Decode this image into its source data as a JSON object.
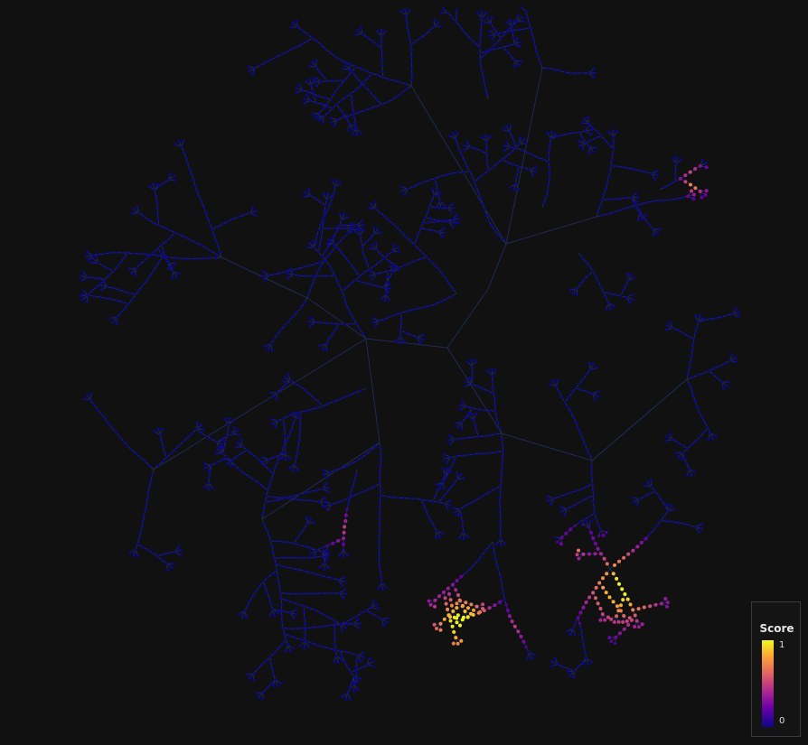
{
  "colorbar": {
    "title": "Score",
    "max_label": "1",
    "min_label": "0",
    "colors": {
      "high": "#f0f921",
      "upper_mid": "#fca636",
      "mid": "#e16462",
      "lower_mid": "#b12a90",
      "low_mid": "#6a00a8",
      "low": "#0d0887"
    }
  },
  "tree": {
    "edge_color": "#1e2a5a",
    "background": "#111111"
  }
}
